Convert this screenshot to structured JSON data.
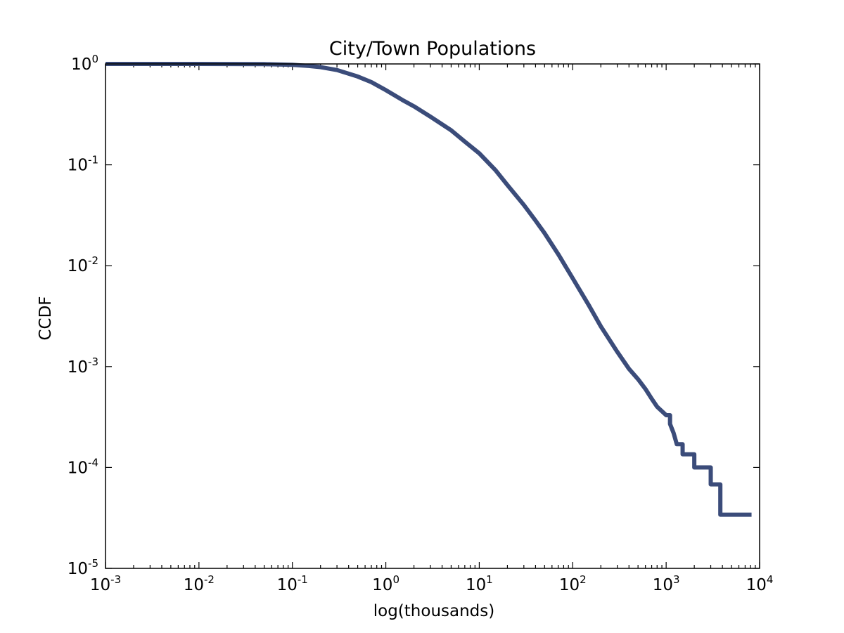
{
  "chart_data": {
    "type": "line",
    "title": "City/Town Populations",
    "xlabel": "log(thousands)",
    "ylabel": "CCDF",
    "xscale": "log",
    "yscale": "log",
    "xlim": [
      0.001,
      10000
    ],
    "ylim": [
      1e-05,
      1
    ],
    "grid": false,
    "legend": "none",
    "line_color": "#3b4c7a",
    "x_ticks": [
      {
        "value": 0.001,
        "base": "10",
        "exp": "-3"
      },
      {
        "value": 0.01,
        "base": "10",
        "exp": "-2"
      },
      {
        "value": 0.1,
        "base": "10",
        "exp": "-1"
      },
      {
        "value": 1,
        "base": "10",
        "exp": "0"
      },
      {
        "value": 10,
        "base": "10",
        "exp": "1"
      },
      {
        "value": 100,
        "base": "10",
        "exp": "2"
      },
      {
        "value": 1000,
        "base": "10",
        "exp": "3"
      },
      {
        "value": 10000,
        "base": "10",
        "exp": "4"
      }
    ],
    "y_ticks": [
      {
        "value": 1,
        "base": "10",
        "exp": "0"
      },
      {
        "value": 0.1,
        "base": "10",
        "exp": "-1"
      },
      {
        "value": 0.01,
        "base": "10",
        "exp": "-2"
      },
      {
        "value": 0.001,
        "base": "10",
        "exp": "-3"
      },
      {
        "value": 0.0001,
        "base": "10",
        "exp": "-4"
      },
      {
        "value": 1e-05,
        "base": "10",
        "exp": "-5"
      }
    ],
    "series": [
      {
        "points": [
          [
            0.001,
            1.0
          ],
          [
            0.01,
            0.999
          ],
          [
            0.05,
            0.995
          ],
          [
            0.1,
            0.98
          ],
          [
            0.15,
            0.955
          ],
          [
            0.2,
            0.93
          ],
          [
            0.3,
            0.87
          ],
          [
            0.5,
            0.75
          ],
          [
            0.7,
            0.66
          ],
          [
            1,
            0.55
          ],
          [
            1.5,
            0.44
          ],
          [
            2,
            0.38
          ],
          [
            3,
            0.3
          ],
          [
            5,
            0.22
          ],
          [
            7,
            0.17
          ],
          [
            10,
            0.13
          ],
          [
            15,
            0.088
          ],
          [
            20,
            0.063
          ],
          [
            30,
            0.04
          ],
          [
            40,
            0.028
          ],
          [
            50,
            0.021
          ],
          [
            70,
            0.013
          ],
          [
            100,
            0.0075
          ],
          [
            150,
            0.004
          ],
          [
            200,
            0.0025
          ],
          [
            300,
            0.0014
          ],
          [
            400,
            0.00095
          ],
          [
            500,
            0.00075
          ],
          [
            600,
            0.0006
          ],
          [
            700,
            0.00048
          ],
          [
            800,
            0.0004
          ],
          [
            1000,
            0.00033
          ],
          [
            1100,
            0.00033
          ],
          [
            1100,
            0.00027
          ],
          [
            1200,
            0.00022
          ],
          [
            1300,
            0.00017
          ],
          [
            1500,
            0.00017
          ],
          [
            1500,
            0.000135
          ],
          [
            2000,
            0.000135
          ],
          [
            2000,
            0.0001
          ],
          [
            3000,
            0.0001
          ],
          [
            3000,
            6.8e-05
          ],
          [
            3800,
            6.8e-05
          ],
          [
            3800,
            3.4e-05
          ],
          [
            8200,
            3.4e-05
          ]
        ]
      }
    ]
  }
}
